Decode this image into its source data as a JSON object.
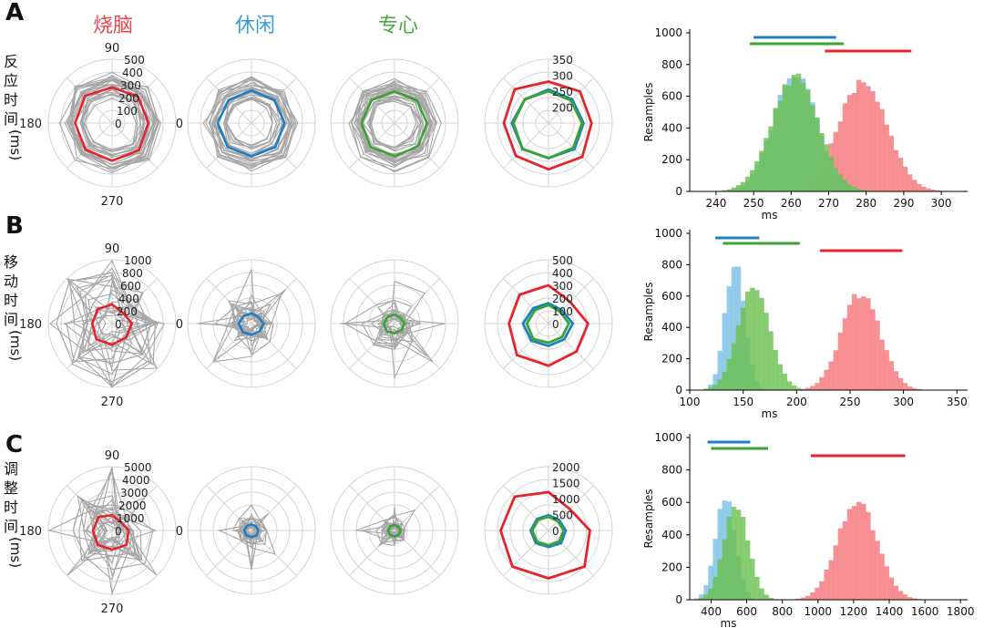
{
  "panel_letters": [
    "A",
    "B",
    "C"
  ],
  "columns": [
    {
      "label": "烧脑",
      "color": "#e8474d"
    },
    {
      "label": "休闲",
      "color": "#3a9bd4"
    },
    {
      "label": "专心",
      "color": "#4aa840"
    }
  ],
  "rows": [
    {
      "label_chars": [
        "反",
        "应",
        "时",
        "间",
        "(ms)"
      ]
    },
    {
      "label_chars": [
        "移",
        "动",
        "时",
        "间",
        "(ms)"
      ]
    },
    {
      "label_chars": [
        "调",
        "整",
        "时",
        "间",
        "(ms)"
      ]
    }
  ],
  "polar_angles": {
    "top": "90",
    "left": "180",
    "right": "0",
    "bottom": "270"
  },
  "colors": {
    "red": "#e5242b",
    "blue": "#1f7fc4",
    "green": "#3aa336",
    "gray": "#a6a6a6",
    "hist_red": "#f5777c",
    "hist_blue": "#7bbfe8",
    "hist_green": "#6cc152"
  },
  "chart_data": [
    {
      "type": "radar",
      "row": "反应时间",
      "rmax": 500,
      "ring_labels": [
        "0",
        "100",
        "200",
        "300",
        "400",
        "500"
      ],
      "zoom_rmax": 350,
      "zoom_rmin": 150,
      "zoom_ring_labels": [
        "200",
        "250",
        "300",
        "350"
      ],
      "means": {
        "烧脑": [
          285,
          290,
          280,
          300,
          290,
          295,
          295,
          300
        ],
        "休闲": [
          260,
          255,
          255,
          255,
          265,
          265,
          260,
          265
        ],
        "专心": [
          255,
          250,
          250,
          255,
          260,
          265,
          260,
          260
        ]
      }
    },
    {
      "type": "radar",
      "row": "移动时间",
      "rmax": 1000,
      "ring_labels": [
        "0",
        "200",
        "400",
        "600",
        "800",
        "1000"
      ],
      "zoom_rmax": 500,
      "zoom_rmin": 0,
      "zoom_ring_labels": [
        "0",
        "100",
        "200",
        "300",
        "400",
        "500"
      ],
      "means": {
        "烧脑": [
          310,
          240,
          300,
          320,
          310,
          350,
          330,
          310
        ],
        "休闲": [
          190,
          150,
          160,
          170,
          200,
          190,
          175,
          175
        ],
        "专心": [
          160,
          130,
          145,
          150,
          170,
          170,
          150,
          150
        ]
      }
    },
    {
      "type": "radar",
      "row": "调整时间",
      "rmax": 5000,
      "ring_labels": [
        "0",
        "1000",
        "2000",
        "3000",
        "4000",
        "5000"
      ],
      "zoom_rmax": 2000,
      "zoom_rmin": 0,
      "zoom_ring_labels": [
        "0",
        "500",
        "1000",
        "1500",
        "2000"
      ],
      "means": {
        "烧脑": [
          1300,
          950,
          1200,
          1500,
          1500,
          1600,
          1500,
          1600
        ],
        "休闲": [
          540,
          470,
          480,
          510,
          560,
          560,
          520,
          560
        ],
        "专心": [
          480,
          410,
          430,
          470,
          510,
          500,
          470,
          480
        ]
      }
    },
    {
      "type": "histogram",
      "row": "反应时间",
      "xlabel": "ms",
      "ylabel": "Resamples",
      "xlim": [
        233,
        307
      ],
      "ylim": [
        0,
        1000
      ],
      "xticks": [
        240,
        250,
        260,
        270,
        280,
        290,
        300
      ],
      "yticks": [
        0,
        200,
        400,
        600,
        800,
        1000
      ],
      "series": [
        {
          "name": "烧脑",
          "mean": 279,
          "sd": 6.5,
          "peak": 690,
          "ci": [
            269,
            292
          ]
        },
        {
          "name": "休闲",
          "mean": 261,
          "sd": 5.8,
          "peak": 745,
          "ci": [
            250,
            272
          ]
        },
        {
          "name": "专心",
          "mean": 261,
          "sd": 6.2,
          "peak": 720,
          "ci": [
            249,
            274
          ]
        }
      ]
    },
    {
      "type": "histogram",
      "row": "移动时间",
      "xlabel": "ms",
      "ylabel": "Resamples",
      "xlim": [
        100,
        360
      ],
      "ylim": [
        0,
        1000
      ],
      "xticks": [
        100,
        150,
        200,
        250,
        300,
        350
      ],
      "yticks": [
        0,
        200,
        400,
        600,
        800,
        1000
      ],
      "series": [
        {
          "name": "烧脑",
          "mean": 260,
          "sd": 18,
          "peak": 620,
          "ci": [
            222,
            299
          ]
        },
        {
          "name": "休闲",
          "mean": 142,
          "sd": 9,
          "peak": 820,
          "ci": [
            124,
            165
          ]
        },
        {
          "name": "专心",
          "mean": 160,
          "sd": 15,
          "peak": 650,
          "ci": [
            131,
            203
          ]
        }
      ]
    },
    {
      "type": "histogram",
      "row": "调整时间",
      "xlabel": "ms",
      "ylabel": "Resamples",
      "xlim": [
        280,
        1840
      ],
      "ylim": [
        0,
        1000
      ],
      "xticks": [
        400,
        600,
        800,
        1000,
        1200,
        1400,
        1600,
        1800
      ],
      "yticks": [
        0,
        200,
        400,
        600,
        800,
        1000
      ],
      "series": [
        {
          "name": "烧脑",
          "mean": 1220,
          "sd": 110,
          "peak": 610,
          "ci": [
            960,
            1490
          ]
        },
        {
          "name": "休闲",
          "mean": 480,
          "sd": 55,
          "peak": 640,
          "ci": [
            380,
            620
          ]
        },
        {
          "name": "专心",
          "mean": 540,
          "sd": 70,
          "peak": 570,
          "ci": [
            400,
            720
          ]
        }
      ]
    }
  ]
}
